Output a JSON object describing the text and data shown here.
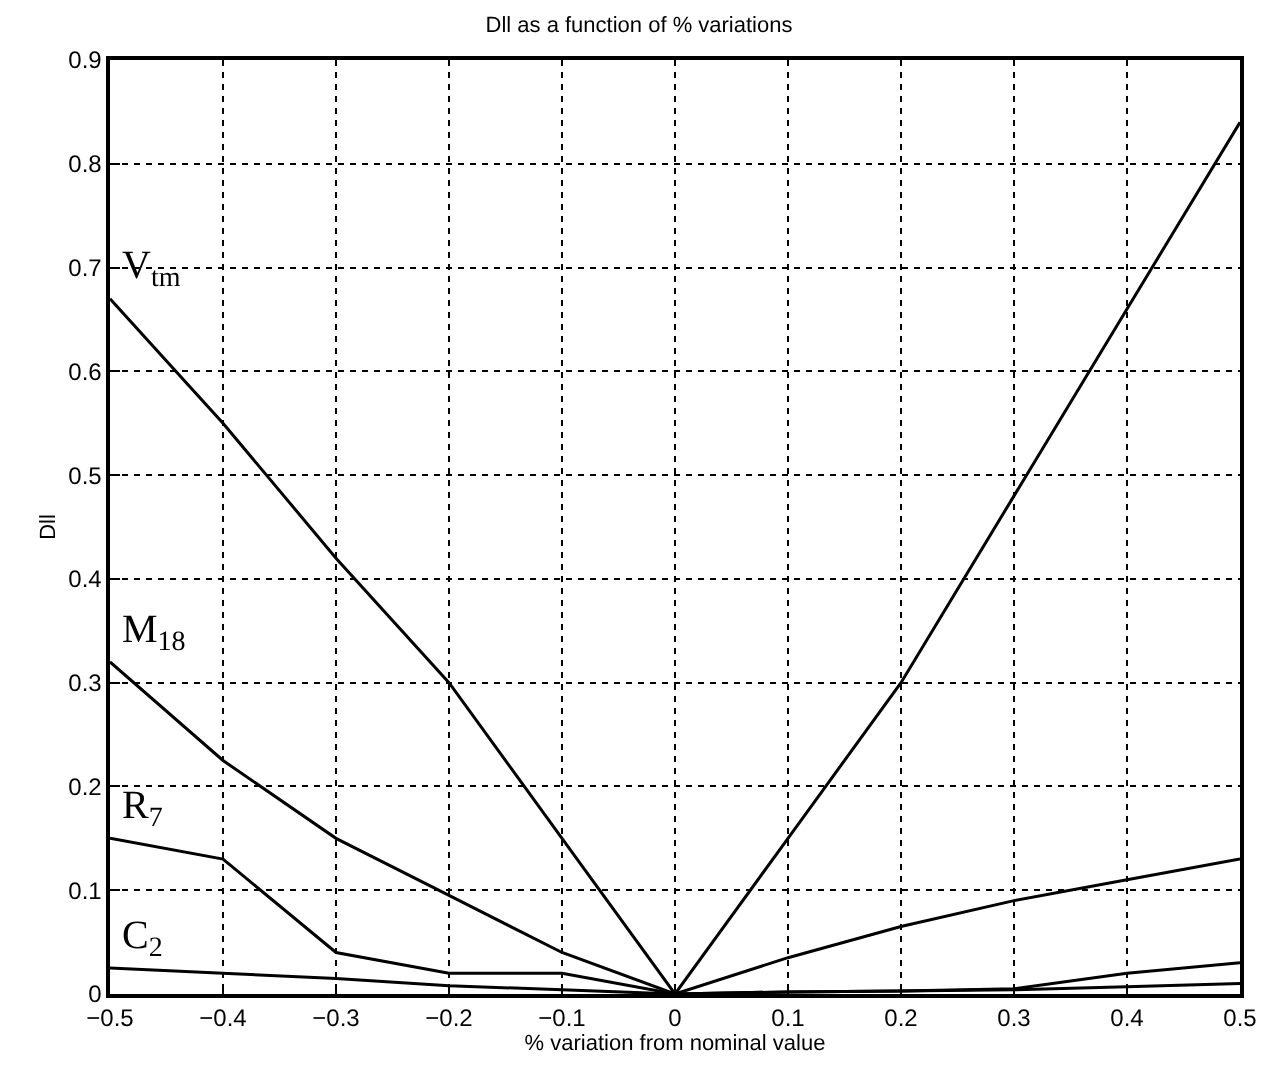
{
  "chart_data": {
    "type": "line",
    "title": "Dll as a function of % variations",
    "xlabel": "% variation from nominal value",
    "ylabel": "Dll",
    "x": [
      -0.5,
      -0.4,
      -0.3,
      -0.2,
      -0.1,
      0,
      0.1,
      0.2,
      0.3,
      0.4,
      0.5
    ],
    "series": [
      {
        "name": "V$_{tm}$",
        "color": "#000000",
        "values": [
          0.67,
          0.55,
          0.42,
          0.3,
          0.15,
          0,
          0.15,
          0.3,
          0.48,
          0.66,
          0.84
        ]
      },
      {
        "name": "M$_{18}$",
        "color": "#000000",
        "values": [
          0.32,
          0.225,
          0.15,
          0.095,
          0.04,
          0,
          0.035,
          0.065,
          0.09,
          0.11,
          0.13
        ]
      },
      {
        "name": "R$_{7}$",
        "color": "#000000",
        "values": [
          0.15,
          0.13,
          0.04,
          0.02,
          0.02,
          0,
          0.002,
          0.003,
          0.005,
          0.02,
          0.03
        ]
      },
      {
        "name": "C$_{2}$",
        "color": "#000000",
        "values": [
          0.025,
          0.02,
          0.015,
          0.008,
          0.004,
          0,
          0.002,
          0.003,
          0.004,
          0.007,
          0.01
        ]
      }
    ],
    "xlim": [
      -0.5,
      0.5
    ],
    "xticks": [
      -0.5,
      -0.4,
      -0.3,
      -0.2,
      -0.1,
      0,
      0.1,
      0.2,
      0.3,
      0.4,
      0.5
    ],
    "ylim": [
      0,
      0.9
    ],
    "yticks": [
      0,
      0.1,
      0.2,
      0.3,
      0.4,
      0.5,
      0.6,
      0.7,
      0.8,
      0.9
    ],
    "grid": true,
    "legend": false,
    "marker": "none",
    "line_style": "solid"
  }
}
